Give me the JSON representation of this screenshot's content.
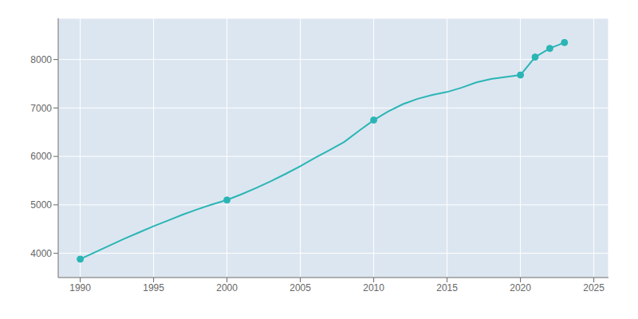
{
  "chart_data": {
    "type": "line",
    "x": [
      1990,
      1991,
      1992,
      1993,
      1994,
      1995,
      1996,
      1997,
      1998,
      1999,
      2000,
      2001,
      2002,
      2003,
      2004,
      2005,
      2006,
      2007,
      2008,
      2009,
      2010,
      2011,
      2012,
      2013,
      2014,
      2015,
      2016,
      2017,
      2018,
      2019,
      2020,
      2021,
      2022,
      2023
    ],
    "series": [
      {
        "type": "line",
        "color": "#2ab5b5",
        "values": [
          3880,
          4020,
          4160,
          4300,
          4430,
          4560,
          4680,
          4800,
          4910,
          5010,
          5100,
          5220,
          5350,
          5490,
          5640,
          5800,
          5970,
          6130,
          6300,
          6530,
          6750,
          6930,
          7080,
          7190,
          7270,
          7330,
          7420,
          7530,
          7600,
          7640,
          7680,
          8050,
          8230,
          8350
        ]
      },
      {
        "type": "scatter",
        "marker": "circle",
        "color": "#2ab5b5",
        "values": [
          3880,
          null,
          null,
          null,
          null,
          null,
          null,
          null,
          null,
          null,
          5100,
          null,
          null,
          null,
          null,
          null,
          null,
          null,
          null,
          null,
          6750,
          null,
          null,
          null,
          null,
          null,
          null,
          null,
          null,
          null,
          7680,
          8050,
          8230,
          8350
        ]
      }
    ],
    "xlim": [
      1988.5,
      2026
    ],
    "ylim": [
      3500,
      8850
    ],
    "xticks": [
      1990,
      1995,
      2000,
      2005,
      2010,
      2015,
      2020,
      2025
    ],
    "yticks": [
      4000,
      5000,
      6000,
      7000,
      8000
    ],
    "grid": true
  }
}
